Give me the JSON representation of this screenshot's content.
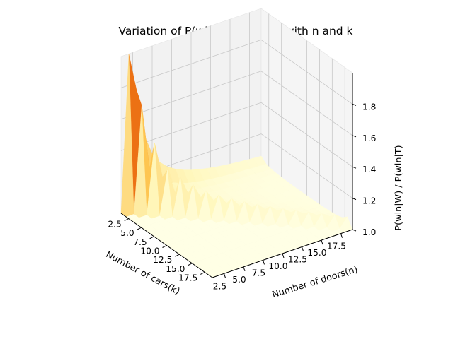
{
  "chart_data": {
    "type": "surface3d",
    "title": "Variation of P(win|W)/P(win|T) with n and k",
    "xlabel": "Number of cars(k)",
    "ylabel": "Number of doors(n)",
    "zlabel": "P(win|W) / P(win|T)",
    "x_ticks": [
      "2.5",
      "5.0",
      "7.5",
      "10.0",
      "12.5",
      "15.0",
      "17.5"
    ],
    "y_ticks": [
      "2.5",
      "5.0",
      "7.5",
      "10.0",
      "12.5",
      "15.0",
      "17.5"
    ],
    "z_ticks": [
      "1.0",
      "1.2",
      "1.4",
      "1.6",
      "1.8"
    ],
    "xlim": [
      1,
      19
    ],
    "ylim": [
      1,
      19
    ],
    "zlim": [
      1.0,
      2.0
    ],
    "colormap": "YlOrBr",
    "grid": true,
    "pane_color": "#f2f2f2",
    "surface_rows_along_k": [
      {
        "k": 1,
        "ratio_by_n": [
          2.0,
          1.5,
          1.333,
          1.25,
          1.2,
          1.167,
          1.143,
          1.125,
          1.111,
          1.1,
          1.091,
          1.083,
          1.077,
          1.071,
          1.067,
          1.063,
          1.059,
          1.056
        ]
      },
      {
        "k": 2,
        "ratio_by_n": [
          1.6,
          1.333,
          1.222,
          1.167,
          1.133,
          1.111,
          1.095,
          1.083,
          1.074,
          1.067,
          1.061,
          1.056,
          1.051,
          1.048,
          1.044,
          1.042,
          1.039,
          1.037
        ]
      }
    ]
  }
}
